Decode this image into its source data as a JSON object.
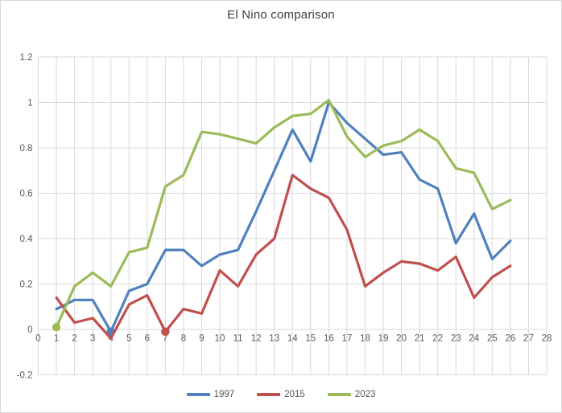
{
  "chart_data": {
    "type": "line",
    "title": "El Nino comparison",
    "xlabel": "",
    "ylabel": "",
    "xlim": [
      0,
      28
    ],
    "ylim": [
      -0.2,
      1.2
    ],
    "grid": true,
    "legend_position": "bottom",
    "x_tick_labels": [
      "0",
      "1",
      "2",
      "3",
      "4",
      "5",
      "6",
      "7",
      "8",
      "9",
      "10",
      "11",
      "12",
      "13",
      "14",
      "15",
      "16",
      "17",
      "18",
      "19",
      "20",
      "21",
      "22",
      "23",
      "24",
      "25",
      "26",
      "27",
      "28"
    ],
    "y_tick_labels": [
      "-0.2",
      "0",
      "0.2",
      "0.4",
      "0.6",
      "0.8",
      "1",
      "1.2"
    ],
    "y_tick_values": [
      -0.2,
      0,
      0.2,
      0.4,
      0.6,
      0.8,
      1,
      1.2
    ],
    "x": [
      1,
      2,
      3,
      4,
      5,
      6,
      7,
      8,
      9,
      10,
      11,
      12,
      13,
      14,
      15,
      16,
      17,
      18,
      19,
      20,
      21,
      22,
      23,
      24,
      25,
      26
    ],
    "series": [
      {
        "name": "1997",
        "color": "#4F81BD",
        "marker_x": 4,
        "values": [
          0.09,
          0.13,
          0.13,
          -0.01,
          0.17,
          0.2,
          0.35,
          0.35,
          0.28,
          0.33,
          0.35,
          0.52,
          0.7,
          0.88,
          0.74,
          1.0,
          0.91,
          0.84,
          0.77,
          0.78,
          0.66,
          0.62,
          0.38,
          0.51,
          0.31,
          0.39
        ]
      },
      {
        "name": "2015",
        "color": "#C0504D",
        "marker_x": 7,
        "values": [
          0.14,
          0.03,
          0.05,
          -0.04,
          0.11,
          0.15,
          -0.01,
          0.09,
          0.07,
          0.26,
          0.19,
          0.33,
          0.4,
          0.68,
          0.62,
          0.58,
          0.44,
          0.19,
          0.25,
          0.3,
          0.29,
          0.26,
          0.32,
          0.14,
          0.23,
          0.28
        ]
      },
      {
        "name": "2023",
        "color": "#9BBB59",
        "marker_x": 1,
        "values": [
          0.01,
          0.19,
          0.25,
          0.19,
          0.34,
          0.36,
          0.63,
          0.68,
          0.87,
          0.86,
          0.84,
          0.82,
          0.89,
          0.94,
          0.95,
          1.01,
          0.85,
          0.76,
          0.81,
          0.83,
          0.88,
          0.83,
          0.71,
          0.69,
          0.53,
          0.57
        ]
      }
    ],
    "style": {
      "gridline_color": "#D9D9D9",
      "axis_label_color": "#595959",
      "title_color": "#3F3F3F",
      "background": "#FFFFFF",
      "line_width": 3.2,
      "marker_radius": 5.2
    }
  }
}
